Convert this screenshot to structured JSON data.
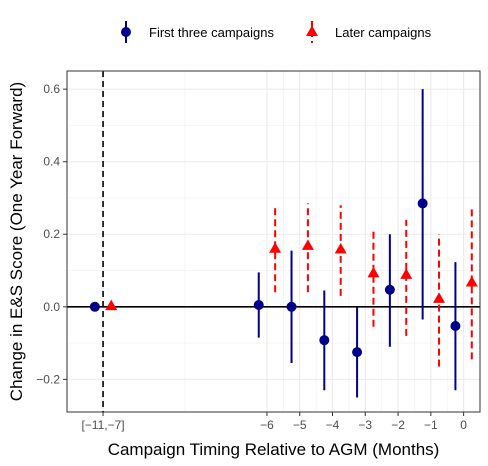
{
  "chart_data": {
    "type": "scatter",
    "subtype": "coefficient plot with confidence intervals",
    "xlabel": "Campaign Timing Relative to AGM (Months)",
    "ylabel": "Change in E&S Score (One Year Forward)",
    "xlim": [
      -12.1,
      0.5
    ],
    "ylim": [
      -0.29,
      0.65
    ],
    "x_ticks": [
      {
        "value": -11,
        "label": "[−11,−7]"
      },
      {
        "value": -6,
        "label": "−6"
      },
      {
        "value": -5,
        "label": "−5"
      },
      {
        "value": -4,
        "label": "−4"
      },
      {
        "value": -3,
        "label": "−3"
      },
      {
        "value": -2,
        "label": "−2"
      },
      {
        "value": -1,
        "label": "−1"
      },
      {
        "value": 0,
        "label": "0"
      }
    ],
    "y_ticks": [
      {
        "value": -0.2,
        "label": "−0.2"
      },
      {
        "value": 0.0,
        "label": "0.0"
      },
      {
        "value": 0.2,
        "label": "0.2"
      },
      {
        "value": 0.4,
        "label": "0.4"
      },
      {
        "value": 0.6,
        "label": "0.6"
      }
    ],
    "reference_lines": {
      "horizontal_y": 0.0,
      "vertical_x_dashed": -11
    },
    "grid": true,
    "legend_position": "top",
    "series": [
      {
        "name": "First three campaigns",
        "color": "#00008B",
        "marker": "circle",
        "line_style": "solid",
        "points": [
          {
            "x": -11.25,
            "y": 0.0,
            "lo": null,
            "hi": null
          },
          {
            "x": -6.25,
            "y": 0.005,
            "lo": -0.085,
            "hi": 0.095
          },
          {
            "x": -5.25,
            "y": 0.0,
            "lo": -0.155,
            "hi": 0.155
          },
          {
            "x": -4.25,
            "y": -0.092,
            "lo": -0.23,
            "hi": 0.045
          },
          {
            "x": -3.25,
            "y": -0.125,
            "lo": -0.25,
            "hi": 0.0
          },
          {
            "x": -2.25,
            "y": 0.047,
            "lo": -0.11,
            "hi": 0.2
          },
          {
            "x": -1.25,
            "y": 0.285,
            "lo": -0.035,
            "hi": 0.6
          },
          {
            "x": -0.25,
            "y": -0.053,
            "lo": -0.23,
            "hi": 0.123
          }
        ]
      },
      {
        "name": "Later campaigns",
        "color": "#FF0000",
        "marker": "triangle",
        "line_style": "dashed",
        "points": [
          {
            "x": -10.75,
            "y": 0.002,
            "lo": null,
            "hi": null
          },
          {
            "x": -5.75,
            "y": 0.16,
            "lo": 0.04,
            "hi": 0.275
          },
          {
            "x": -4.75,
            "y": 0.168,
            "lo": 0.04,
            "hi": 0.285
          },
          {
            "x": -3.75,
            "y": 0.158,
            "lo": 0.03,
            "hi": 0.28
          },
          {
            "x": -2.75,
            "y": 0.092,
            "lo": -0.055,
            "hi": 0.215
          },
          {
            "x": -1.75,
            "y": 0.088,
            "lo": -0.08,
            "hi": 0.24
          },
          {
            "x": -0.75,
            "y": 0.022,
            "lo": -0.165,
            "hi": 0.2
          },
          {
            "x": 0.25,
            "y": 0.067,
            "lo": -0.145,
            "hi": 0.27
          }
        ]
      }
    ]
  }
}
